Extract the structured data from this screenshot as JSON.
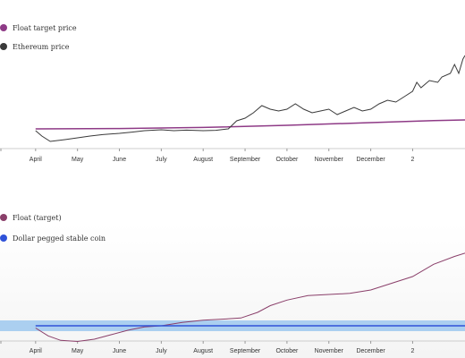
{
  "colors": {
    "float": "#8e3a86",
    "ethereum": "#3a3a3a",
    "float_target": "#8a3f6a",
    "stable": "#2f52d8",
    "stable_band": "#9ec8ee"
  },
  "chart_data": [
    {
      "type": "line",
      "legend": [
        "Float target price",
        "Ethereum price"
      ],
      "legend_placement": "top-left",
      "x_ticks": [
        "April",
        "May",
        "June",
        "July",
        "August",
        "September",
        "October",
        "November",
        "December",
        "2"
      ],
      "series": [
        {
          "name": "Float target price",
          "points": [
            [
              0.0,
              0.09
            ],
            [
              2.0,
              0.092
            ],
            [
              4.0,
              0.098
            ],
            [
              6.0,
              0.11
            ],
            [
              8.0,
              0.125
            ],
            [
              9.5,
              0.136
            ],
            [
              10.25,
              0.14
            ]
          ]
        },
        {
          "name": "Ethereum price",
          "points": [
            [
              0.0,
              0.08
            ],
            [
              0.15,
              0.05
            ],
            [
              0.35,
              0.02
            ],
            [
              0.7,
              0.03
            ],
            [
              1.0,
              0.04
            ],
            [
              1.3,
              0.05
            ],
            [
              1.6,
              0.058
            ],
            [
              2.0,
              0.065
            ],
            [
              2.3,
              0.072
            ],
            [
              2.6,
              0.08
            ],
            [
              3.0,
              0.085
            ],
            [
              3.3,
              0.08
            ],
            [
              3.6,
              0.083
            ],
            [
              4.0,
              0.08
            ],
            [
              4.3,
              0.082
            ],
            [
              4.6,
              0.09
            ],
            [
              4.8,
              0.135
            ],
            [
              5.0,
              0.15
            ],
            [
              5.2,
              0.18
            ],
            [
              5.4,
              0.22
            ],
            [
              5.6,
              0.2
            ],
            [
              5.8,
              0.19
            ],
            [
              6.0,
              0.2
            ],
            [
              6.2,
              0.23
            ],
            [
              6.4,
              0.2
            ],
            [
              6.6,
              0.18
            ],
            [
              6.8,
              0.19
            ],
            [
              7.0,
              0.2
            ],
            [
              7.2,
              0.17
            ],
            [
              7.4,
              0.19
            ],
            [
              7.6,
              0.21
            ],
            [
              7.8,
              0.19
            ],
            [
              8.0,
              0.2
            ],
            [
              8.2,
              0.23
            ],
            [
              8.4,
              0.25
            ],
            [
              8.6,
              0.24
            ],
            [
              8.8,
              0.27
            ],
            [
              9.0,
              0.3
            ],
            [
              9.1,
              0.35
            ],
            [
              9.2,
              0.32
            ],
            [
              9.4,
              0.36
            ],
            [
              9.6,
              0.35
            ],
            [
              9.7,
              0.38
            ],
            [
              9.9,
              0.4
            ],
            [
              10.0,
              0.45
            ],
            [
              10.1,
              0.4
            ],
            [
              10.2,
              0.48
            ],
            [
              10.25,
              0.5
            ]
          ]
        }
      ]
    },
    {
      "type": "line",
      "legend": [
        "Float (target)",
        "Dollar pegged stable coin"
      ],
      "legend_placement": "top-left",
      "x_ticks": [
        "April",
        "May",
        "June",
        "July",
        "August",
        "September",
        "October",
        "November",
        "December",
        "2"
      ],
      "series": [
        {
          "name": "Float (target)",
          "points": [
            [
              0.0,
              -0.02
            ],
            [
              0.3,
              -0.09
            ],
            [
              0.6,
              -0.13
            ],
            [
              1.0,
              -0.14
            ],
            [
              1.4,
              -0.12
            ],
            [
              1.8,
              -0.08
            ],
            [
              2.2,
              -0.04
            ],
            [
              2.6,
              -0.01
            ],
            [
              3.0,
              0.0
            ],
            [
              3.5,
              0.03
            ],
            [
              4.0,
              0.05
            ],
            [
              4.5,
              0.06
            ],
            [
              4.9,
              0.07
            ],
            [
              5.3,
              0.12
            ],
            [
              5.6,
              0.18
            ],
            [
              6.0,
              0.23
            ],
            [
              6.5,
              0.27
            ],
            [
              7.0,
              0.28
            ],
            [
              7.5,
              0.29
            ],
            [
              8.0,
              0.32
            ],
            [
              8.5,
              0.38
            ],
            [
              9.0,
              0.44
            ],
            [
              9.5,
              0.55
            ],
            [
              10.0,
              0.62
            ],
            [
              10.25,
              0.65
            ]
          ]
        },
        {
          "name": "Dollar pegged stable coin",
          "points": [
            [
              0.0,
              0.0
            ],
            [
              10.25,
              0.0
            ]
          ]
        }
      ]
    }
  ]
}
